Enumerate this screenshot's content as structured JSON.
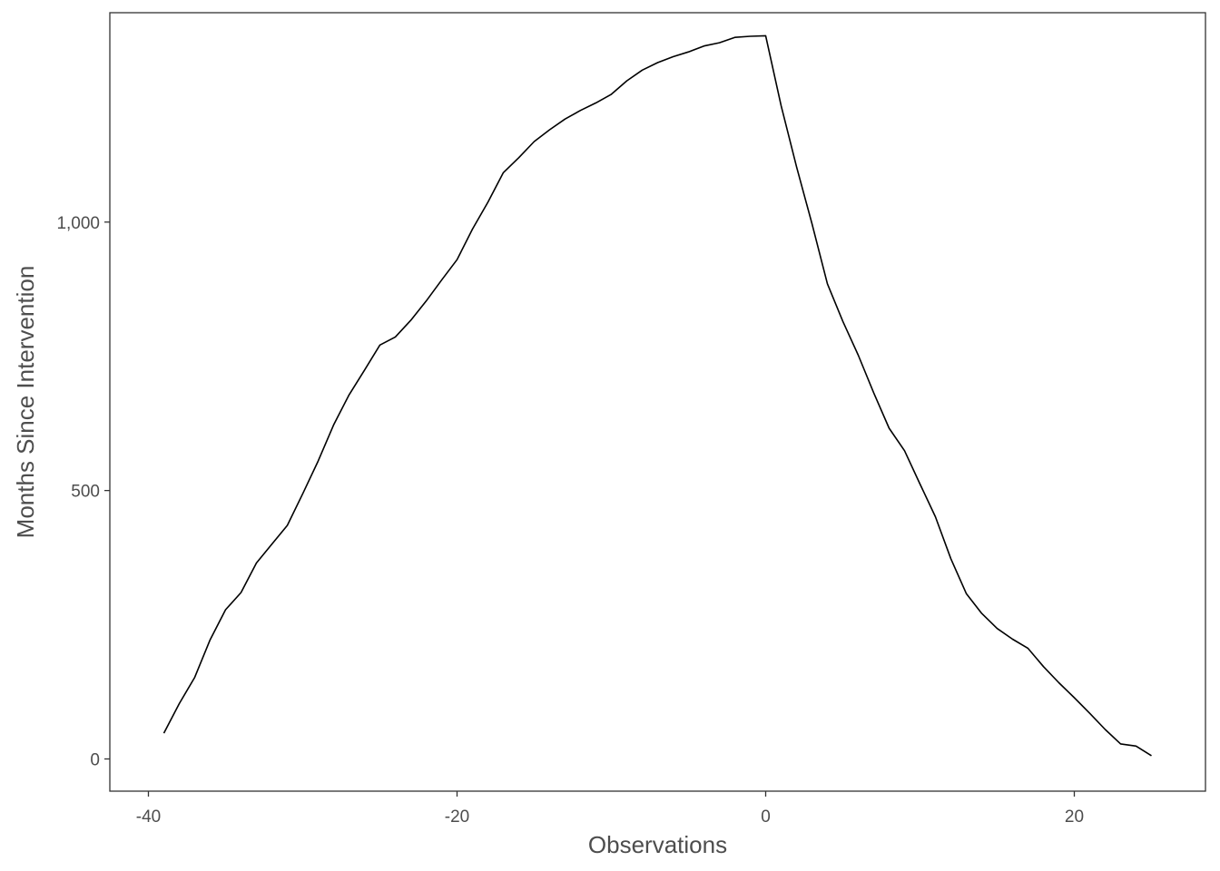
{
  "chart_data": {
    "type": "line",
    "xlabel": "Observations",
    "ylabel": "Months Since Intervention",
    "xlim": [
      -42.5,
      28.5
    ],
    "ylim": [
      -60,
      1390
    ],
    "x_ticks": [
      -40,
      -20,
      0,
      20
    ],
    "x_tick_labels": [
      "-40",
      "-20",
      "0",
      "20"
    ],
    "y_ticks": [
      0,
      500,
      1000
    ],
    "y_tick_labels": [
      "0",
      "500",
      "1,000"
    ],
    "grid": false,
    "line_color": "#000000",
    "series": [
      {
        "x": [
          -39,
          -38,
          -37,
          -36,
          -35,
          -34,
          -33,
          -32,
          -31,
          -30,
          -29,
          -28,
          -27,
          -26,
          -25,
          -24,
          -23,
          -22,
          -21,
          -20,
          -19,
          -18,
          -17,
          -16,
          -15,
          -14,
          -13,
          -12,
          -11,
          -10,
          -9,
          -8,
          -7,
          -6,
          -5,
          -4,
          -3,
          -2,
          -1,
          0,
          1,
          2,
          3,
          4,
          5,
          6,
          7,
          8,
          9,
          10,
          11,
          12,
          13,
          14,
          15,
          16,
          17,
          18,
          19,
          20,
          21,
          22,
          23,
          24,
          25
        ],
        "y": [
          48,
          103,
          152,
          222,
          278,
          310,
          365,
          400,
          435,
          494,
          555,
          622,
          678,
          724,
          771,
          786,
          817,
          853,
          892,
          930,
          987,
          1037,
          1092,
          1120,
          1150,
          1172,
          1192,
          1208,
          1222,
          1238,
          1263,
          1283,
          1297,
          1308,
          1317,
          1328,
          1334,
          1344,
          1346,
          1347,
          1217,
          1103,
          997,
          885,
          815,
          752,
          682,
          616,
          574,
          512,
          451,
          373,
          308,
          271,
          243,
          223,
          206,
          172,
          142,
          114,
          85,
          55,
          28,
          24,
          6
        ]
      }
    ]
  }
}
